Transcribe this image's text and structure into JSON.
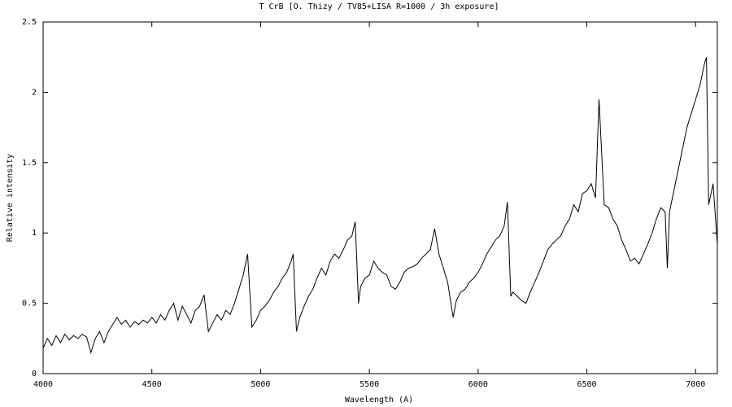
{
  "chart_data": {
    "type": "line",
    "title": "T CrB  [O. Thizy / TV85+LISA R=1000 / 3h exposure]",
    "x_label": "Wavelength (A)",
    "y_label": "Relative intensity",
    "xlim": [
      4000,
      7100
    ],
    "ylim": [
      0,
      2.5
    ],
    "xticks": [
      4000,
      4500,
      5000,
      5500,
      6000,
      6500,
      7000
    ],
    "yticks": [
      0,
      0.5,
      1,
      1.5,
      2,
      2.5
    ],
    "series": [
      {
        "color": "#000000",
        "x": [
          4000,
          4020,
          4040,
          4060,
          4080,
          4100,
          4120,
          4140,
          4160,
          4180,
          4200,
          4220,
          4240,
          4260,
          4280,
          4300,
          4320,
          4340,
          4360,
          4380,
          4400,
          4420,
          4440,
          4460,
          4480,
          4500,
          4520,
          4540,
          4560,
          4580,
          4600,
          4620,
          4640,
          4660,
          4680,
          4700,
          4720,
          4740,
          4760,
          4780,
          4800,
          4820,
          4840,
          4860,
          4880,
          4900,
          4920,
          4940,
          4960,
          4980,
          5000,
          5020,
          5040,
          5060,
          5080,
          5100,
          5120,
          5140,
          5150,
          5165,
          5180,
          5200,
          5220,
          5240,
          5260,
          5280,
          5300,
          5320,
          5340,
          5360,
          5380,
          5400,
          5420,
          5435,
          5450,
          5460,
          5480,
          5500,
          5520,
          5540,
          5560,
          5580,
          5600,
          5620,
          5640,
          5660,
          5680,
          5700,
          5720,
          5740,
          5760,
          5780,
          5800,
          5820,
          5840,
          5860,
          5885,
          5900,
          5920,
          5940,
          5960,
          5980,
          6000,
          6020,
          6040,
          6060,
          6080,
          6100,
          6120,
          6135,
          6150,
          6160,
          6180,
          6200,
          6220,
          6240,
          6260,
          6280,
          6300,
          6320,
          6340,
          6360,
          6380,
          6400,
          6420,
          6440,
          6460,
          6480,
          6500,
          6520,
          6540,
          6556,
          6580,
          6600,
          6620,
          6640,
          6660,
          6680,
          6700,
          6720,
          6740,
          6760,
          6780,
          6800,
          6820,
          6840,
          6860,
          6870,
          6880,
          6900,
          6920,
          6940,
          6960,
          6980,
          7000,
          7020,
          7040,
          7050,
          7060,
          7080,
          7100
        ],
        "values": [
          0.18,
          0.25,
          0.2,
          0.27,
          0.22,
          0.28,
          0.24,
          0.27,
          0.25,
          0.28,
          0.26,
          0.15,
          0.25,
          0.3,
          0.22,
          0.3,
          0.35,
          0.4,
          0.35,
          0.38,
          0.33,
          0.37,
          0.35,
          0.38,
          0.36,
          0.4,
          0.36,
          0.42,
          0.38,
          0.45,
          0.5,
          0.38,
          0.48,
          0.42,
          0.36,
          0.45,
          0.48,
          0.56,
          0.3,
          0.36,
          0.42,
          0.38,
          0.45,
          0.42,
          0.5,
          0.6,
          0.7,
          0.85,
          0.33,
          0.38,
          0.45,
          0.48,
          0.52,
          0.58,
          0.62,
          0.68,
          0.72,
          0.8,
          0.85,
          0.3,
          0.4,
          0.48,
          0.55,
          0.6,
          0.68,
          0.75,
          0.7,
          0.8,
          0.85,
          0.82,
          0.88,
          0.95,
          0.98,
          1.08,
          0.5,
          0.62,
          0.68,
          0.7,
          0.8,
          0.75,
          0.72,
          0.7,
          0.62,
          0.6,
          0.65,
          0.72,
          0.75,
          0.76,
          0.78,
          0.82,
          0.85,
          0.88,
          1.03,
          0.85,
          0.75,
          0.65,
          0.4,
          0.52,
          0.58,
          0.6,
          0.65,
          0.68,
          0.72,
          0.78,
          0.85,
          0.9,
          0.95,
          0.98,
          1.05,
          1.22,
          0.55,
          0.58,
          0.55,
          0.52,
          0.5,
          0.58,
          0.65,
          0.72,
          0.8,
          0.88,
          0.92,
          0.95,
          0.98,
          1.05,
          1.1,
          1.2,
          1.15,
          1.28,
          1.3,
          1.35,
          1.25,
          1.95,
          1.2,
          1.18,
          1.1,
          1.05,
          0.95,
          0.88,
          0.8,
          0.82,
          0.78,
          0.85,
          0.92,
          1.0,
          1.1,
          1.18,
          1.15,
          0.75,
          1.15,
          1.3,
          1.45,
          1.6,
          1.75,
          1.85,
          1.95,
          2.05,
          2.2,
          2.25,
          1.2,
          1.35,
          0.92
        ]
      }
    ]
  }
}
